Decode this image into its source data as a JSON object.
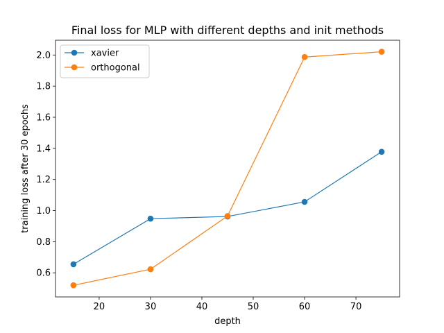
{
  "chart_data": {
    "type": "line",
    "title": "Final loss for MLP with different depths and init methods",
    "xlabel": "depth",
    "ylabel": "training loss after 30 epochs",
    "xlim": [
      11.5,
      78.5
    ],
    "ylim": [
      0.445,
      2.095
    ],
    "xticks": [
      20,
      30,
      40,
      50,
      60,
      70
    ],
    "yticks": [
      0.6,
      0.8,
      1.0,
      1.2,
      1.4,
      1.6,
      1.8,
      2.0
    ],
    "ytick_labels": [
      "0.6",
      "0.8",
      "1.0",
      "1.2",
      "1.4",
      "1.6",
      "1.8",
      "2.0"
    ],
    "grid": false,
    "legend_position": "upper left",
    "x": [
      15,
      30,
      45,
      60,
      75
    ],
    "series": [
      {
        "name": "xavier",
        "color": "#1f77b4",
        "values": [
          0.655,
          0.948,
          0.962,
          1.056,
          1.378
        ]
      },
      {
        "name": "orthogonal",
        "color": "#ff7f0e",
        "values": [
          0.52,
          0.623,
          0.965,
          1.987,
          2.021
        ]
      }
    ]
  }
}
